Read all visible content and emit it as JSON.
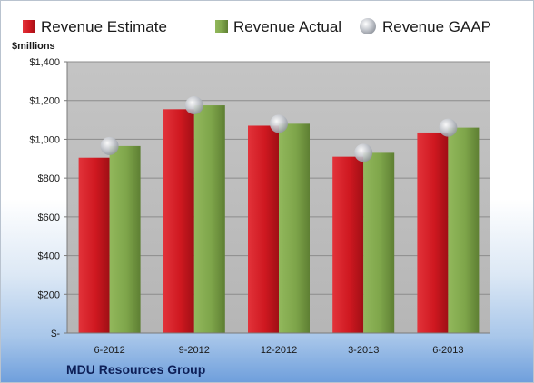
{
  "colors": {
    "estimate": "#d01a22",
    "actual": "#7ea54a",
    "gaap": "#b9bcc2",
    "plot_bg": "#bdbdbd"
  },
  "chart_data": {
    "type": "bar",
    "title": "",
    "ylabel": "$millions",
    "footer": "MDU Resources Group",
    "categories": [
      "6-2012",
      "9-2012",
      "12-2012",
      "3-2013",
      "6-2013"
    ],
    "series": [
      {
        "name": "Revenue Estimate",
        "kind": "bar",
        "values": [
          905,
          1155,
          1070,
          910,
          1035
        ]
      },
      {
        "name": "Revenue Actual",
        "kind": "bar",
        "values": [
          965,
          1175,
          1080,
          930,
          1060
        ]
      },
      {
        "name": "Revenue GAAP",
        "kind": "marker",
        "values": [
          965,
          1175,
          1080,
          930,
          1060
        ]
      }
    ],
    "ylim": [
      0,
      1400
    ],
    "yticks": [
      0,
      200,
      400,
      600,
      800,
      1000,
      1200,
      1400
    ],
    "ytick_labels": [
      "$-",
      "$200",
      "$400",
      "$600",
      "$800",
      "$1,000",
      "$1,200",
      "$1,400"
    ],
    "grid": true,
    "legend_position": "top"
  }
}
